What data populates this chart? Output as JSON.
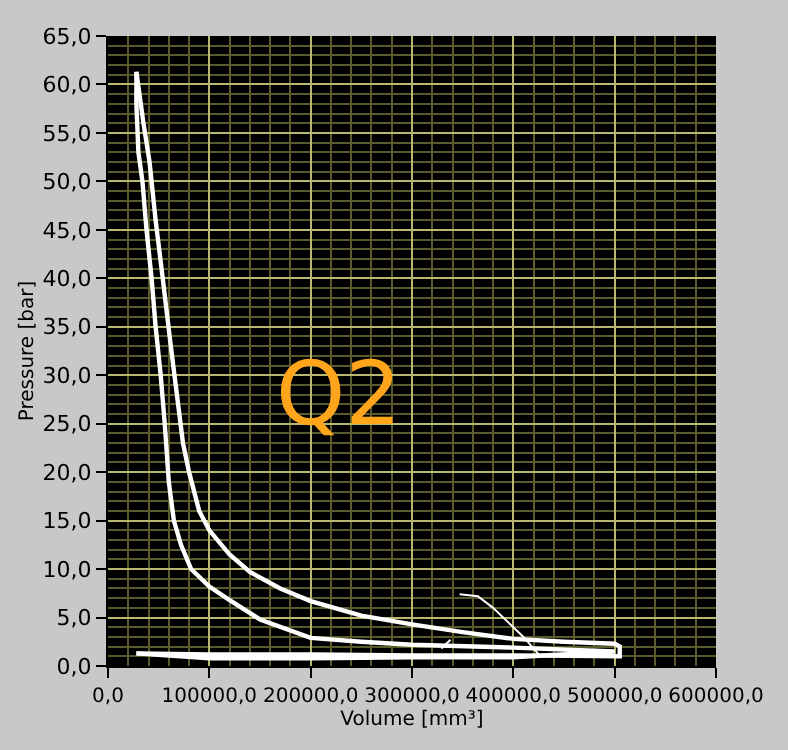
{
  "chart_data": {
    "type": "line",
    "xlabel": "Volume [mm³]",
    "ylabel": "Pressure [bar]",
    "annotations": [
      "Q2"
    ],
    "series": [
      {
        "color": "#ffffff",
        "x": [
          28000,
          35000,
          41000,
          47000,
          54000,
          62000,
          68000,
          74000,
          80000,
          90000,
          100000,
          120000,
          140000,
          170000,
          200000,
          250000,
          300000,
          350000,
          400000,
          450000,
          500000,
          505000,
          505000,
          400000,
          300000,
          200000,
          100000,
          28000
        ],
        "values": [
          61.3,
          56,
          52,
          46,
          40,
          33,
          28,
          23,
          20,
          16,
          14,
          11.5,
          9.7,
          8,
          6.7,
          5.2,
          4.3,
          3.5,
          2.8,
          2.5,
          2.3,
          2.0,
          1.0,
          1.1,
          1.1,
          1.2,
          1.2,
          1.3
        ]
      },
      {
        "color": "#ffffff",
        "x": [
          28000,
          100000,
          200000,
          300000,
          400000,
          500000,
          400000,
          300000,
          250000,
          200000,
          150000,
          120000,
          100000,
          82000,
          72000,
          65000,
          60000,
          56000,
          52000,
          47000,
          43000,
          38000,
          34000,
          30000,
          28000,
          28000
        ],
        "values": [
          1.3,
          0.8,
          0.8,
          0.9,
          0.9,
          1.5,
          1.9,
          2.2,
          2.5,
          2.9,
          4.8,
          6.8,
          8.2,
          10,
          12.5,
          15,
          19,
          25,
          30,
          35,
          40,
          45,
          50,
          53,
          58,
          61.3
        ]
      },
      {
        "color": "#ffffff",
        "x": [
          347000,
          365000,
          380000,
          395000,
          410000,
          425000
        ],
        "values": [
          7.4,
          7.2,
          6.0,
          4.5,
          3.0,
          1.2
        ]
      },
      {
        "color": "#ffffff",
        "x": [
          338000,
          329000
        ],
        "values": [
          2.7,
          1.8
        ]
      }
    ],
    "xlim": [
      0,
      600000
    ],
    "ylim": [
      0,
      65
    ],
    "xticks": [
      {
        "value": 0,
        "label": "0,0"
      },
      {
        "value": 20000,
        "label": null
      },
      {
        "value": 40000,
        "label": null
      },
      {
        "value": 60000,
        "label": null
      },
      {
        "value": 80000,
        "label": null
      },
      {
        "value": 100000,
        "label": "100000,0"
      },
      {
        "value": 120000,
        "label": null
      },
      {
        "value": 140000,
        "label": null
      },
      {
        "value": 160000,
        "label": null
      },
      {
        "value": 180000,
        "label": null
      },
      {
        "value": 200000,
        "label": "200000,0"
      },
      {
        "value": 220000,
        "label": null
      },
      {
        "value": 240000,
        "label": null
      },
      {
        "value": 260000,
        "label": null
      },
      {
        "value": 280000,
        "label": null
      },
      {
        "value": 300000,
        "label": "300000,0"
      },
      {
        "value": 320000,
        "label": null
      },
      {
        "value": 340000,
        "label": null
      },
      {
        "value": 360000,
        "label": null
      },
      {
        "value": 380000,
        "label": null
      },
      {
        "value": 400000,
        "label": "400000,0"
      },
      {
        "value": 420000,
        "label": null
      },
      {
        "value": 440000,
        "label": null
      },
      {
        "value": 460000,
        "label": null
      },
      {
        "value": 480000,
        "label": null
      },
      {
        "value": 500000,
        "label": "500000,0"
      },
      {
        "value": 520000,
        "label": null
      },
      {
        "value": 540000,
        "label": null
      },
      {
        "value": 560000,
        "label": null
      },
      {
        "value": 580000,
        "label": null
      },
      {
        "value": 600000,
        "label": "600000,0"
      }
    ],
    "yticks": [
      {
        "value": 0,
        "label": "0,0"
      },
      {
        "value": 1,
        "label": null
      },
      {
        "value": 2,
        "label": null
      },
      {
        "value": 3,
        "label": null
      },
      {
        "value": 4,
        "label": null
      },
      {
        "value": 5,
        "label": "5,0"
      },
      {
        "value": 6,
        "label": null
      },
      {
        "value": 7,
        "label": null
      },
      {
        "value": 8,
        "label": null
      },
      {
        "value": 9,
        "label": null
      },
      {
        "value": 10,
        "label": "10,0"
      },
      {
        "value": 11,
        "label": null
      },
      {
        "value": 12,
        "label": null
      },
      {
        "value": 13,
        "label": null
      },
      {
        "value": 14,
        "label": null
      },
      {
        "value": 15,
        "label": "15,0"
      },
      {
        "value": 16,
        "label": null
      },
      {
        "value": 17,
        "label": null
      },
      {
        "value": 18,
        "label": null
      },
      {
        "value": 19,
        "label": null
      },
      {
        "value": 20,
        "label": "20,0"
      },
      {
        "value": 21,
        "label": null
      },
      {
        "value": 22,
        "label": null
      },
      {
        "value": 23,
        "label": null
      },
      {
        "value": 24,
        "label": null
      },
      {
        "value": 25,
        "label": "25,0"
      },
      {
        "value": 26,
        "label": null
      },
      {
        "value": 27,
        "label": null
      },
      {
        "value": 28,
        "label": null
      },
      {
        "value": 29,
        "label": null
      },
      {
        "value": 30,
        "label": "30,0"
      },
      {
        "value": 31,
        "label": null
      },
      {
        "value": 32,
        "label": null
      },
      {
        "value": 33,
        "label": null
      },
      {
        "value": 34,
        "label": null
      },
      {
        "value": 35,
        "label": "35,0"
      },
      {
        "value": 36,
        "label": null
      },
      {
        "value": 37,
        "label": null
      },
      {
        "value": 38,
        "label": null
      },
      {
        "value": 39,
        "label": null
      },
      {
        "value": 40,
        "label": "40,0"
      },
      {
        "value": 41,
        "label": null
      },
      {
        "value": 42,
        "label": null
      },
      {
        "value": 43,
        "label": null
      },
      {
        "value": 44,
        "label": null
      },
      {
        "value": 45,
        "label": "45,0"
      },
      {
        "value": 46,
        "label": null
      },
      {
        "value": 47,
        "label": null
      },
      {
        "value": 48,
        "label": null
      },
      {
        "value": 49,
        "label": null
      },
      {
        "value": 50,
        "label": "50,0"
      },
      {
        "value": 51,
        "label": null
      },
      {
        "value": 52,
        "label": null
      },
      {
        "value": 53,
        "label": null
      },
      {
        "value": 54,
        "label": null
      },
      {
        "value": 55,
        "label": "55,0"
      },
      {
        "value": 56,
        "label": null
      },
      {
        "value": 57,
        "label": null
      },
      {
        "value": 58,
        "label": null
      },
      {
        "value": 59,
        "label": null
      },
      {
        "value": 60,
        "label": "60,0"
      },
      {
        "value": 61,
        "label": null
      },
      {
        "value": 62,
        "label": null
      },
      {
        "value": 63,
        "label": null
      },
      {
        "value": 64,
        "label": null
      },
      {
        "value": 65,
        "label": "65,0"
      }
    ],
    "grid": true,
    "marker": "none",
    "line_style": "solid"
  }
}
